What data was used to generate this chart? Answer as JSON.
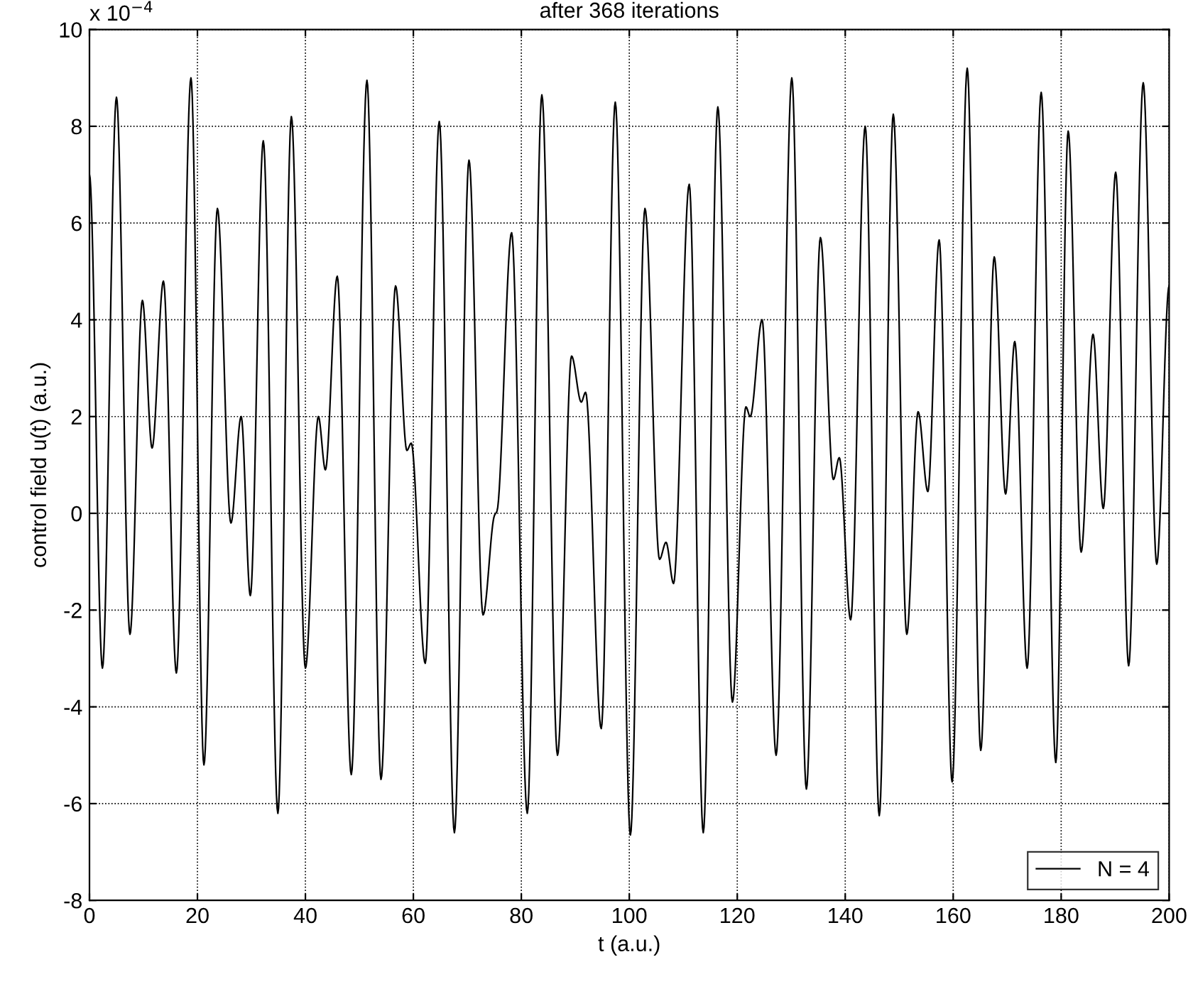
{
  "chart_data": {
    "type": "line",
    "title": "after 368 iterations",
    "xlabel": "t (a.u.)",
    "ylabel": "control field u(t) (a.u.)",
    "annotations": [
      "x 10$^{−4}$"
    ],
    "series": [
      {
        "name": "N = 4",
        "color": "#000000",
        "x": [
          0,
          2.4,
          5.0,
          7.5,
          9.8,
          11.6,
          13.7,
          16.1,
          18.8,
          21.2,
          23.7,
          26.2,
          28.1,
          29.8,
          32.2,
          34.9,
          37.4,
          40.0,
          42.4,
          43.7,
          45.9,
          48.5,
          51.4,
          54.0,
          56.7,
          58.8,
          59.6,
          62.2,
          64.8,
          67.6,
          70.3,
          72.9,
          75.0,
          75.5,
          78.2,
          81.1,
          83.8,
          86.7,
          89.3,
          91.1,
          91.9,
          94.8,
          97.4,
          100.2,
          102.9,
          105.6,
          106.8,
          108.2,
          111.1,
          113.7,
          116.4,
          119.1,
          121.6,
          122.4,
          124.6,
          127.2,
          130.1,
          132.8,
          135.4,
          137.8,
          138.9,
          141.0,
          143.7,
          146.3,
          148.9,
          151.4,
          153.5,
          155.3,
          157.4,
          159.8,
          162.6,
          165.1,
          167.6,
          169.7,
          171.4,
          173.7,
          176.3,
          179.0,
          181.3,
          183.7,
          185.9,
          187.8,
          190.1,
          192.5,
          195.2,
          197.7,
          200
        ],
        "values": [
          7.0,
          -3.2,
          8.6,
          -2.5,
          4.4,
          1.35,
          4.8,
          -3.3,
          9.0,
          -5.2,
          6.3,
          -0.2,
          2.0,
          -1.7,
          7.7,
          -6.2,
          8.2,
          -3.2,
          2.0,
          0.9,
          4.9,
          -5.4,
          8.95,
          -5.5,
          4.7,
          1.3,
          1.45,
          -3.1,
          8.1,
          -6.6,
          7.3,
          -2.1,
          -0.05,
          0.05,
          5.8,
          -6.2,
          8.65,
          -5.0,
          3.25,
          2.3,
          2.5,
          -4.45,
          8.5,
          -6.65,
          6.3,
          -0.95,
          -0.6,
          -1.45,
          6.8,
          -6.6,
          8.4,
          -3.9,
          2.2,
          2.0,
          4.0,
          -5.0,
          9.0,
          -5.7,
          5.7,
          0.7,
          1.15,
          -2.2,
          8.0,
          -6.25,
          8.25,
          -2.5,
          2.1,
          0.45,
          5.65,
          -5.55,
          9.2,
          -4.9,
          5.3,
          0.4,
          3.55,
          -3.2,
          8.7,
          -5.15,
          7.9,
          -0.8,
          3.7,
          0.1,
          7.05,
          -3.15,
          8.9,
          -1.05,
          4.7
        ]
      }
    ],
    "xlim": [
      0,
      200
    ],
    "xticks": [
      0,
      20,
      40,
      60,
      80,
      100,
      120,
      140,
      160,
      180,
      200
    ],
    "ylim": [
      -8,
      10
    ],
    "yticks": [
      -8,
      -6,
      -4,
      -2,
      0,
      2,
      4,
      6,
      8,
      10
    ],
    "grid": true,
    "legend": "bottom right",
    "line_style": "solid",
    "marker": "none"
  }
}
